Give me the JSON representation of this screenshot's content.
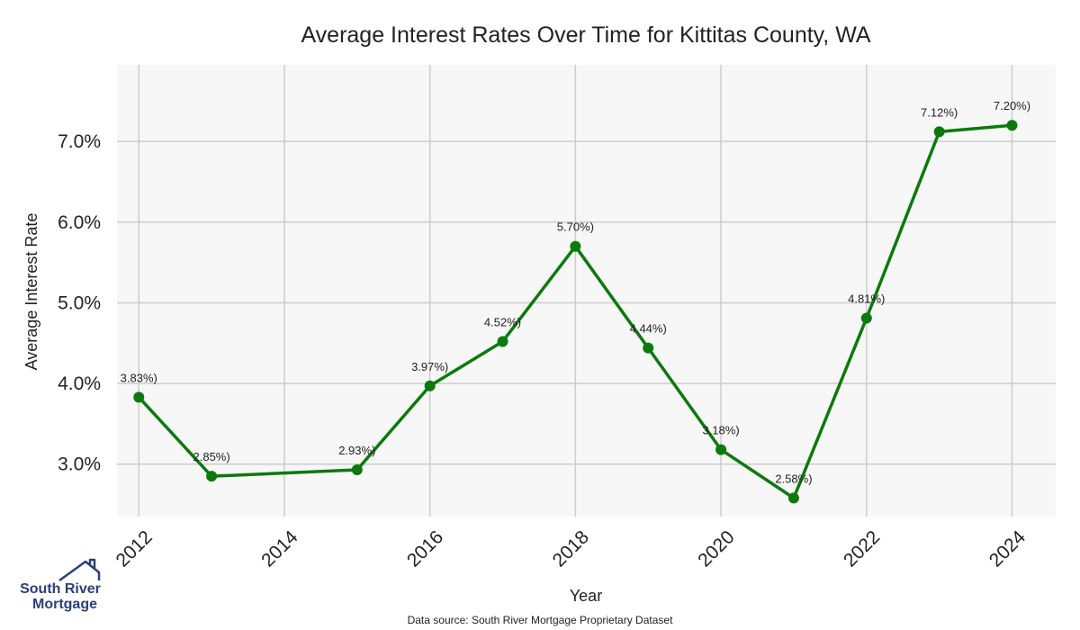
{
  "chart_data": {
    "type": "line",
    "title": "Average Interest Rates Over Time for Kittitas County, WA",
    "xlabel": "Year",
    "ylabel": "Average Interest Rate",
    "x_ticks": [
      "2012",
      "2014",
      "2016",
      "2018",
      "2020",
      "2022",
      "2024"
    ],
    "y_ticks": [
      "3.0%",
      "4.0%",
      "5.0%",
      "6.0%",
      "7.0%"
    ],
    "xlim": [
      2011.7,
      2024.6
    ],
    "ylim": [
      2.35,
      7.95
    ],
    "grid": true,
    "line_color": "#0b7a0b",
    "plot_background": "#f7f7f7",
    "grid_color": "#cccccc",
    "series": [
      {
        "x": [
          2012,
          2013,
          2015,
          2016,
          2017,
          2018,
          2019,
          2020,
          2021,
          2022,
          2023,
          2024
        ],
        "values": [
          3.83,
          2.85,
          2.93,
          3.97,
          4.52,
          5.7,
          4.44,
          3.18,
          2.58,
          4.81,
          7.12,
          7.2
        ],
        "labels": [
          "3.83%)",
          "2.85%)",
          "2.93%)",
          "3.97%)",
          "4.52%)",
          "5.70%)",
          "4.44%)",
          "3.18%)",
          "2.58%)",
          "4.81%)",
          "7.12%)",
          "7.20%)"
        ]
      }
    ]
  },
  "source_note": "Data source: South River Mortgage Proprietary Dataset",
  "logo": {
    "line1": "South River",
    "line2": "Mortgage",
    "icon": "house-icon",
    "color": "#2b3f7a"
  }
}
